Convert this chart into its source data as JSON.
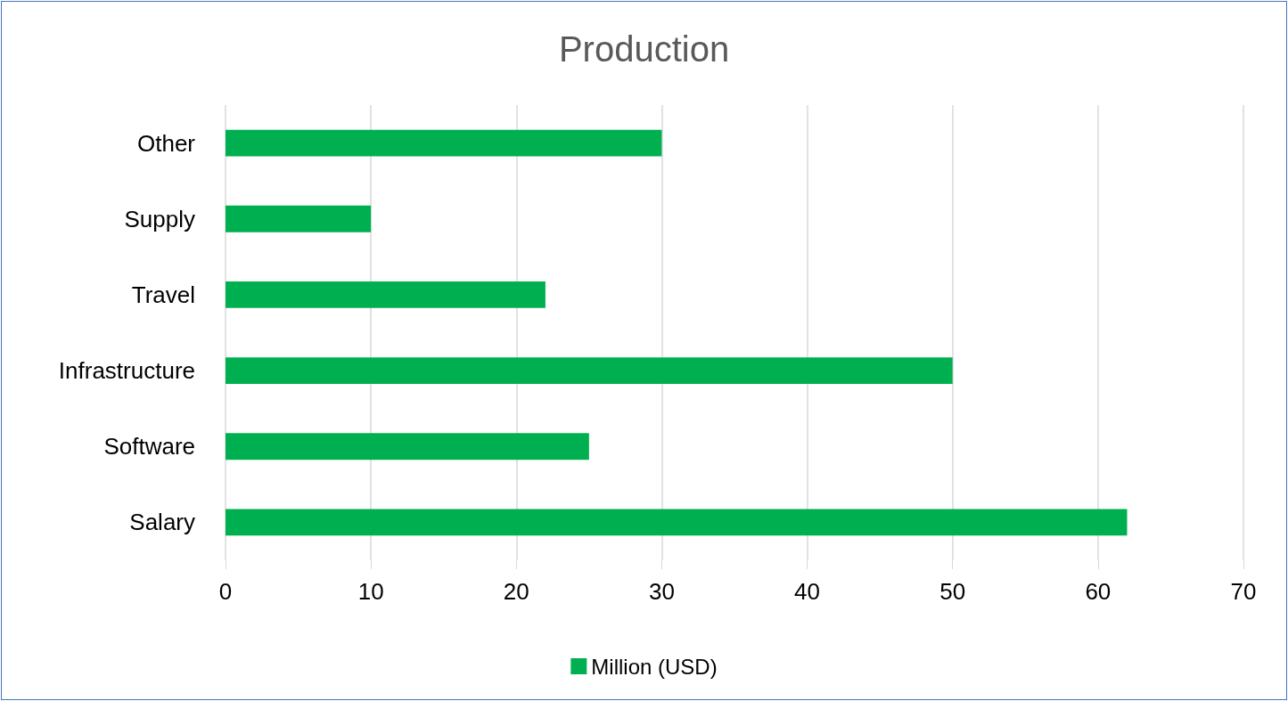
{
  "chart_data": {
    "type": "bar",
    "orientation": "horizontal",
    "title": "Production",
    "categories": [
      "Other",
      "Supply",
      "Travel",
      "Infrastructure",
      "Software",
      "Salary"
    ],
    "series": [
      {
        "name": "Million (USD)",
        "color": "#00b050",
        "values": [
          30,
          10,
          22,
          50,
          25,
          62
        ]
      }
    ],
    "xlim": [
      0,
      70
    ],
    "xticks": [
      0,
      10,
      20,
      30,
      40,
      50,
      60,
      70
    ],
    "grid": "x",
    "legend": "bottom"
  }
}
